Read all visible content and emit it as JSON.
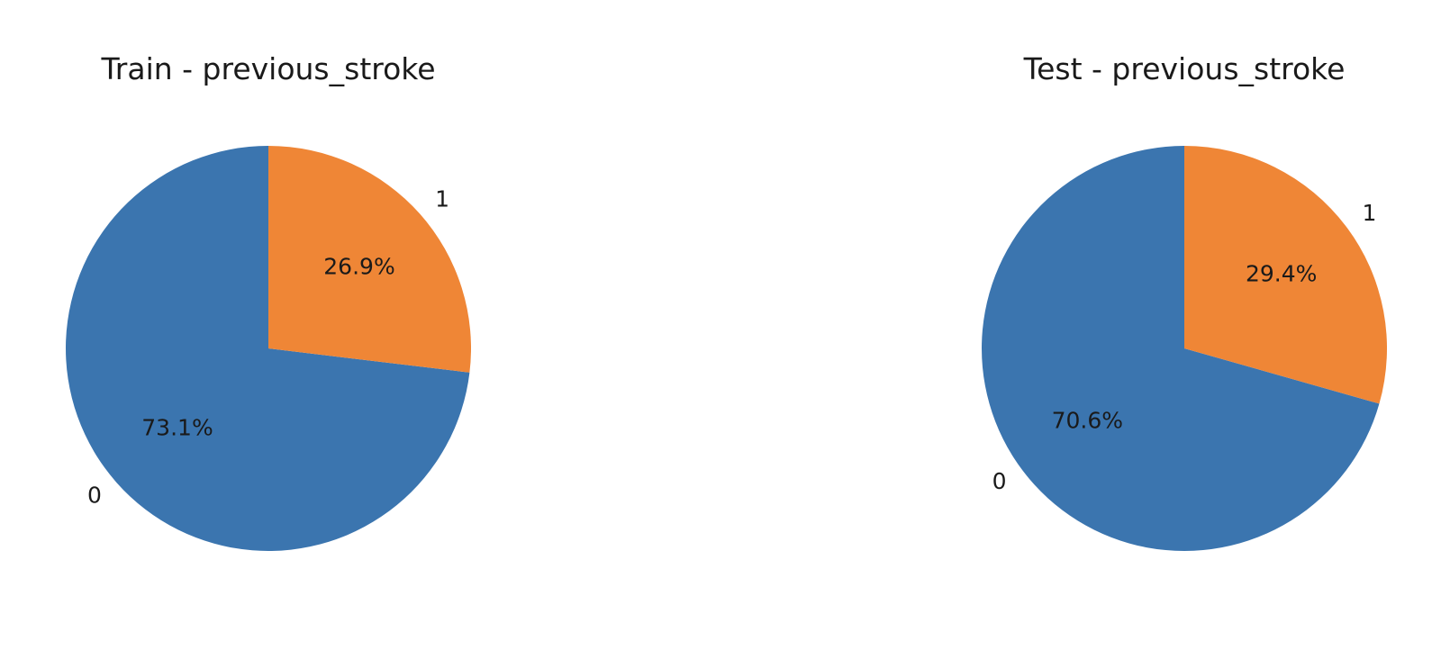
{
  "chart_data": [
    {
      "type": "pie",
      "title": "Train - previous_stroke",
      "categories": [
        "0",
        "1"
      ],
      "values": [
        73.1,
        26.9
      ],
      "labels": [
        "73.1%",
        "26.9%"
      ],
      "colors": [
        "#3b75af",
        "#ef8636"
      ],
      "start_angle_deg": 90,
      "direction": "counterclockwise"
    },
    {
      "type": "pie",
      "title": "Test - previous_stroke",
      "categories": [
        "0",
        "1"
      ],
      "values": [
        70.6,
        29.4
      ],
      "labels": [
        "70.6%",
        "29.4%"
      ],
      "colors": [
        "#3b75af",
        "#ef8636"
      ],
      "start_angle_deg": 90,
      "direction": "counterclockwise"
    }
  ]
}
